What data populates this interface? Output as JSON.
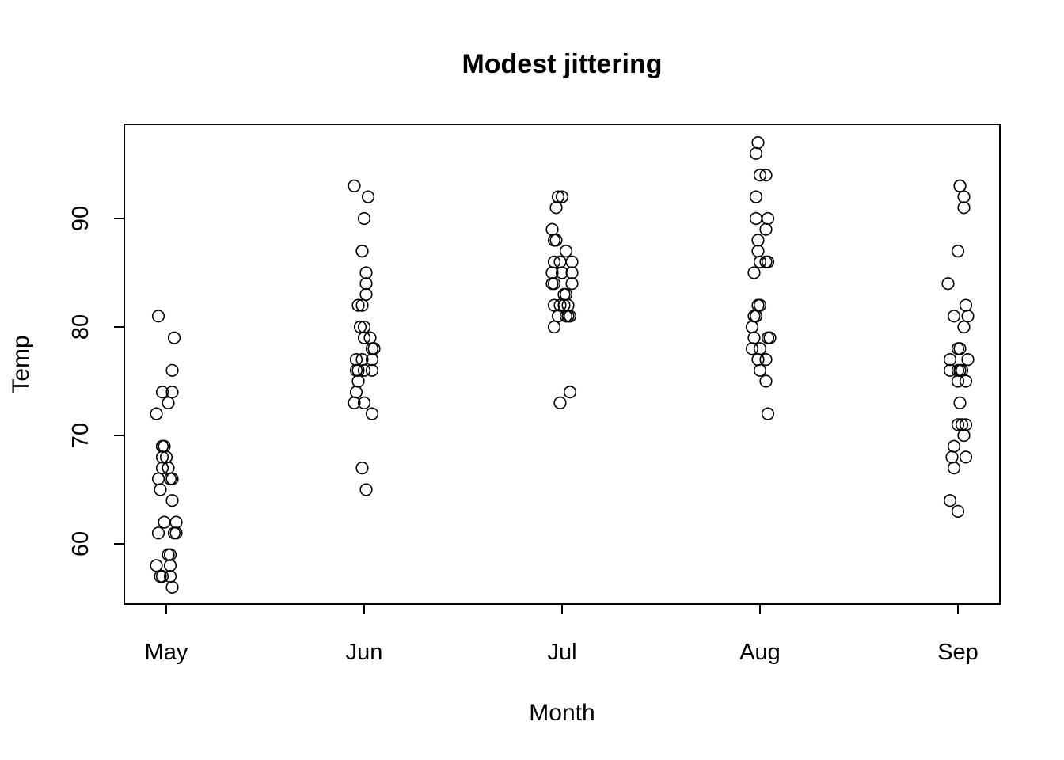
{
  "chart_data": {
    "type": "scatter",
    "title": "Modest jittering",
    "xlabel": "Month",
    "ylabel": "Temp",
    "categories": [
      "May",
      "Jun",
      "Jul",
      "Aug",
      "Sep"
    ],
    "y_ticks": [
      60,
      70,
      80,
      90
    ],
    "ylim": [
      55,
      98.5
    ],
    "grid": false,
    "legend": "none",
    "series": [
      {
        "category": "May",
        "points": [
          {
            "x": 0.96,
            "y": 81
          },
          {
            "x": 1.04,
            "y": 79
          },
          {
            "x": 1.03,
            "y": 76
          },
          {
            "x": 0.98,
            "y": 74
          },
          {
            "x": 1.03,
            "y": 74
          },
          {
            "x": 1.01,
            "y": 73
          },
          {
            "x": 0.95,
            "y": 72
          },
          {
            "x": 0.98,
            "y": 69
          },
          {
            "x": 0.99,
            "y": 69
          },
          {
            "x": 0.98,
            "y": 68
          },
          {
            "x": 1.0,
            "y": 68
          },
          {
            "x": 0.98,
            "y": 67
          },
          {
            "x": 1.01,
            "y": 67
          },
          {
            "x": 0.96,
            "y": 66
          },
          {
            "x": 1.02,
            "y": 66
          },
          {
            "x": 1.03,
            "y": 66
          },
          {
            "x": 0.97,
            "y": 65
          },
          {
            "x": 1.03,
            "y": 64
          },
          {
            "x": 0.99,
            "y": 62
          },
          {
            "x": 1.05,
            "y": 62
          },
          {
            "x": 0.96,
            "y": 61
          },
          {
            "x": 1.04,
            "y": 61
          },
          {
            "x": 1.05,
            "y": 61
          },
          {
            "x": 1.01,
            "y": 59
          },
          {
            "x": 1.02,
            "y": 59
          },
          {
            "x": 0.95,
            "y": 58
          },
          {
            "x": 1.02,
            "y": 58
          },
          {
            "x": 0.97,
            "y": 57
          },
          {
            "x": 0.98,
            "y": 57
          },
          {
            "x": 1.02,
            "y": 57
          },
          {
            "x": 1.03,
            "y": 56
          }
        ]
      },
      {
        "category": "Jun",
        "points": [
          {
            "x": 1.95,
            "y": 93
          },
          {
            "x": 2.02,
            "y": 92
          },
          {
            "x": 2.0,
            "y": 90
          },
          {
            "x": 1.99,
            "y": 87
          },
          {
            "x": 1.99,
            "y": 87
          },
          {
            "x": 2.01,
            "y": 85
          },
          {
            "x": 2.01,
            "y": 84
          },
          {
            "x": 2.01,
            "y": 83
          },
          {
            "x": 1.97,
            "y": 82
          },
          {
            "x": 1.99,
            "y": 82
          },
          {
            "x": 1.98,
            "y": 80
          },
          {
            "x": 2.0,
            "y": 80
          },
          {
            "x": 2.0,
            "y": 79
          },
          {
            "x": 2.03,
            "y": 79
          },
          {
            "x": 2.04,
            "y": 78
          },
          {
            "x": 2.05,
            "y": 78
          },
          {
            "x": 1.96,
            "y": 77
          },
          {
            "x": 1.99,
            "y": 77
          },
          {
            "x": 2.04,
            "y": 77
          },
          {
            "x": 1.96,
            "y": 76
          },
          {
            "x": 1.97,
            "y": 76
          },
          {
            "x": 2.0,
            "y": 76
          },
          {
            "x": 2.04,
            "y": 76
          },
          {
            "x": 1.97,
            "y": 75
          },
          {
            "x": 1.96,
            "y": 74
          },
          {
            "x": 1.95,
            "y": 73
          },
          {
            "x": 2.0,
            "y": 73
          },
          {
            "x": 2.04,
            "y": 72
          },
          {
            "x": 1.99,
            "y": 67
          },
          {
            "x": 2.01,
            "y": 65
          }
        ]
      },
      {
        "category": "Jul",
        "points": [
          {
            "x": 2.98,
            "y": 92
          },
          {
            "x": 3.0,
            "y": 92
          },
          {
            "x": 2.97,
            "y": 91
          },
          {
            "x": 2.95,
            "y": 89
          },
          {
            "x": 2.96,
            "y": 88
          },
          {
            "x": 2.97,
            "y": 88
          },
          {
            "x": 3.02,
            "y": 87
          },
          {
            "x": 2.96,
            "y": 86
          },
          {
            "x": 2.99,
            "y": 86
          },
          {
            "x": 3.05,
            "y": 86
          },
          {
            "x": 2.95,
            "y": 85
          },
          {
            "x": 3.0,
            "y": 85
          },
          {
            "x": 3.05,
            "y": 85
          },
          {
            "x": 2.95,
            "y": 84
          },
          {
            "x": 2.96,
            "y": 84
          },
          {
            "x": 3.05,
            "y": 84
          },
          {
            "x": 3.01,
            "y": 83
          },
          {
            "x": 3.02,
            "y": 83
          },
          {
            "x": 2.96,
            "y": 82
          },
          {
            "x": 2.99,
            "y": 82
          },
          {
            "x": 3.01,
            "y": 82
          },
          {
            "x": 3.03,
            "y": 82
          },
          {
            "x": 2.98,
            "y": 81
          },
          {
            "x": 3.02,
            "y": 81
          },
          {
            "x": 3.03,
            "y": 81
          },
          {
            "x": 3.04,
            "y": 81
          },
          {
            "x": 2.96,
            "y": 80
          },
          {
            "x": 3.04,
            "y": 74
          },
          {
            "x": 2.99,
            "y": 73
          }
        ]
      },
      {
        "category": "Aug",
        "points": [
          {
            "x": 3.99,
            "y": 97
          },
          {
            "x": 3.98,
            "y": 96
          },
          {
            "x": 4.0,
            "y": 94
          },
          {
            "x": 4.03,
            "y": 94
          },
          {
            "x": 3.98,
            "y": 92
          },
          {
            "x": 3.98,
            "y": 90
          },
          {
            "x": 4.04,
            "y": 90
          },
          {
            "x": 4.03,
            "y": 89
          },
          {
            "x": 3.99,
            "y": 88
          },
          {
            "x": 3.99,
            "y": 87
          },
          {
            "x": 4.0,
            "y": 86
          },
          {
            "x": 4.03,
            "y": 86
          },
          {
            "x": 4.04,
            "y": 86
          },
          {
            "x": 3.97,
            "y": 85
          },
          {
            "x": 3.99,
            "y": 82
          },
          {
            "x": 4.0,
            "y": 82
          },
          {
            "x": 3.97,
            "y": 81
          },
          {
            "x": 3.98,
            "y": 81
          },
          {
            "x": 3.98,
            "y": 81
          },
          {
            "x": 3.96,
            "y": 80
          },
          {
            "x": 3.97,
            "y": 79
          },
          {
            "x": 4.04,
            "y": 79
          },
          {
            "x": 4.05,
            "y": 79
          },
          {
            "x": 3.96,
            "y": 78
          },
          {
            "x": 4.0,
            "y": 78
          },
          {
            "x": 3.99,
            "y": 77
          },
          {
            "x": 4.03,
            "y": 77
          },
          {
            "x": 4.0,
            "y": 76
          },
          {
            "x": 4.03,
            "y": 75
          },
          {
            "x": 4.04,
            "y": 72
          }
        ]
      },
      {
        "category": "Sep",
        "points": [
          {
            "x": 5.01,
            "y": 93
          },
          {
            "x": 5.01,
            "y": 93
          },
          {
            "x": 5.03,
            "y": 92
          },
          {
            "x": 5.03,
            "y": 91
          },
          {
            "x": 5.0,
            "y": 87
          },
          {
            "x": 4.95,
            "y": 84
          },
          {
            "x": 5.04,
            "y": 82
          },
          {
            "x": 4.98,
            "y": 81
          },
          {
            "x": 5.05,
            "y": 81
          },
          {
            "x": 5.03,
            "y": 80
          },
          {
            "x": 5.0,
            "y": 78
          },
          {
            "x": 5.01,
            "y": 78
          },
          {
            "x": 4.96,
            "y": 77
          },
          {
            "x": 5.05,
            "y": 77
          },
          {
            "x": 4.96,
            "y": 76
          },
          {
            "x": 5.0,
            "y": 76
          },
          {
            "x": 5.01,
            "y": 76
          },
          {
            "x": 5.02,
            "y": 76
          },
          {
            "x": 5.0,
            "y": 75
          },
          {
            "x": 5.04,
            "y": 75
          },
          {
            "x": 5.01,
            "y": 73
          },
          {
            "x": 5.0,
            "y": 71
          },
          {
            "x": 5.02,
            "y": 71
          },
          {
            "x": 5.04,
            "y": 71
          },
          {
            "x": 5.03,
            "y": 70
          },
          {
            "x": 4.98,
            "y": 69
          },
          {
            "x": 4.97,
            "y": 68
          },
          {
            "x": 5.04,
            "y": 68
          },
          {
            "x": 4.98,
            "y": 67
          },
          {
            "x": 4.96,
            "y": 64
          },
          {
            "x": 5.0,
            "y": 63
          }
        ]
      }
    ]
  }
}
